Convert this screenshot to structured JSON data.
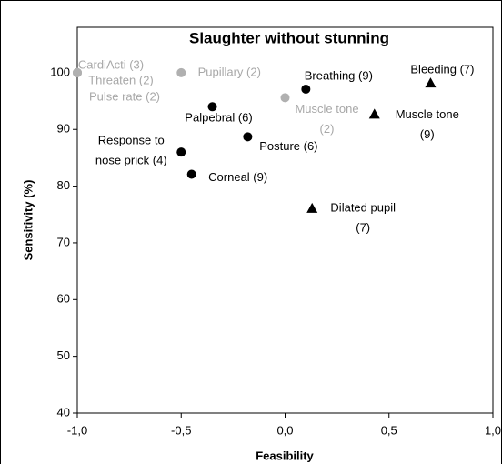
{
  "chart_data": {
    "type": "scatter",
    "title": "Slaughter without stunning",
    "xlabel": "Feasibility",
    "ylabel": "Sensitivity (%)",
    "xlim": [
      -1,
      1
    ],
    "ylim": [
      40,
      108
    ],
    "xticks": [
      {
        "value": -1,
        "label": "-1,0"
      },
      {
        "value": -0.5,
        "label": "-0,5"
      },
      {
        "value": 0,
        "label": "0,0"
      },
      {
        "value": 0.5,
        "label": "0,5"
      },
      {
        "value": 1,
        "label": "1,0"
      }
    ],
    "yticks": [
      40,
      50,
      60,
      70,
      80,
      90,
      100
    ],
    "series": [
      {
        "color": "#b0b0b0",
        "marker": "circle",
        "x": [
          -1,
          -1,
          -1,
          -0.5,
          0.0
        ],
        "values": [
          100,
          100,
          100,
          100,
          95.6
        ],
        "labels": [
          [
            "CardiActi (3)"
          ],
          [
            "Threaten (2)"
          ],
          [
            "Pulse rate (2)"
          ],
          [
            "Pupillary (2)"
          ],
          [
            "Muscle tone",
            "(2)"
          ]
        ]
      },
      {
        "color": "#000000",
        "marker": "circle",
        "x": [
          0.1,
          -0.35,
          -0.18,
          -0.5,
          -0.45
        ],
        "values": [
          97.1,
          94,
          88.7,
          86,
          82.1
        ],
        "labels": [
          [
            "Breathing (9)"
          ],
          [
            "Palpebral (6)"
          ],
          [
            "Posture (6)"
          ],
          [
            "Response to",
            "nose prick (4)"
          ],
          [
            "Corneal (9)"
          ]
        ]
      },
      {
        "color": "#000000",
        "marker": "triangle",
        "x": [
          0.7,
          0.43,
          0.13
        ],
        "values": [
          98.2,
          92.7,
          76.1
        ],
        "labels": [
          [
            "Bleeding (7)"
          ],
          [
            "Muscle tone",
            "(9)"
          ],
          [
            "Dilated pupil",
            "(7)"
          ]
        ]
      }
    ]
  }
}
